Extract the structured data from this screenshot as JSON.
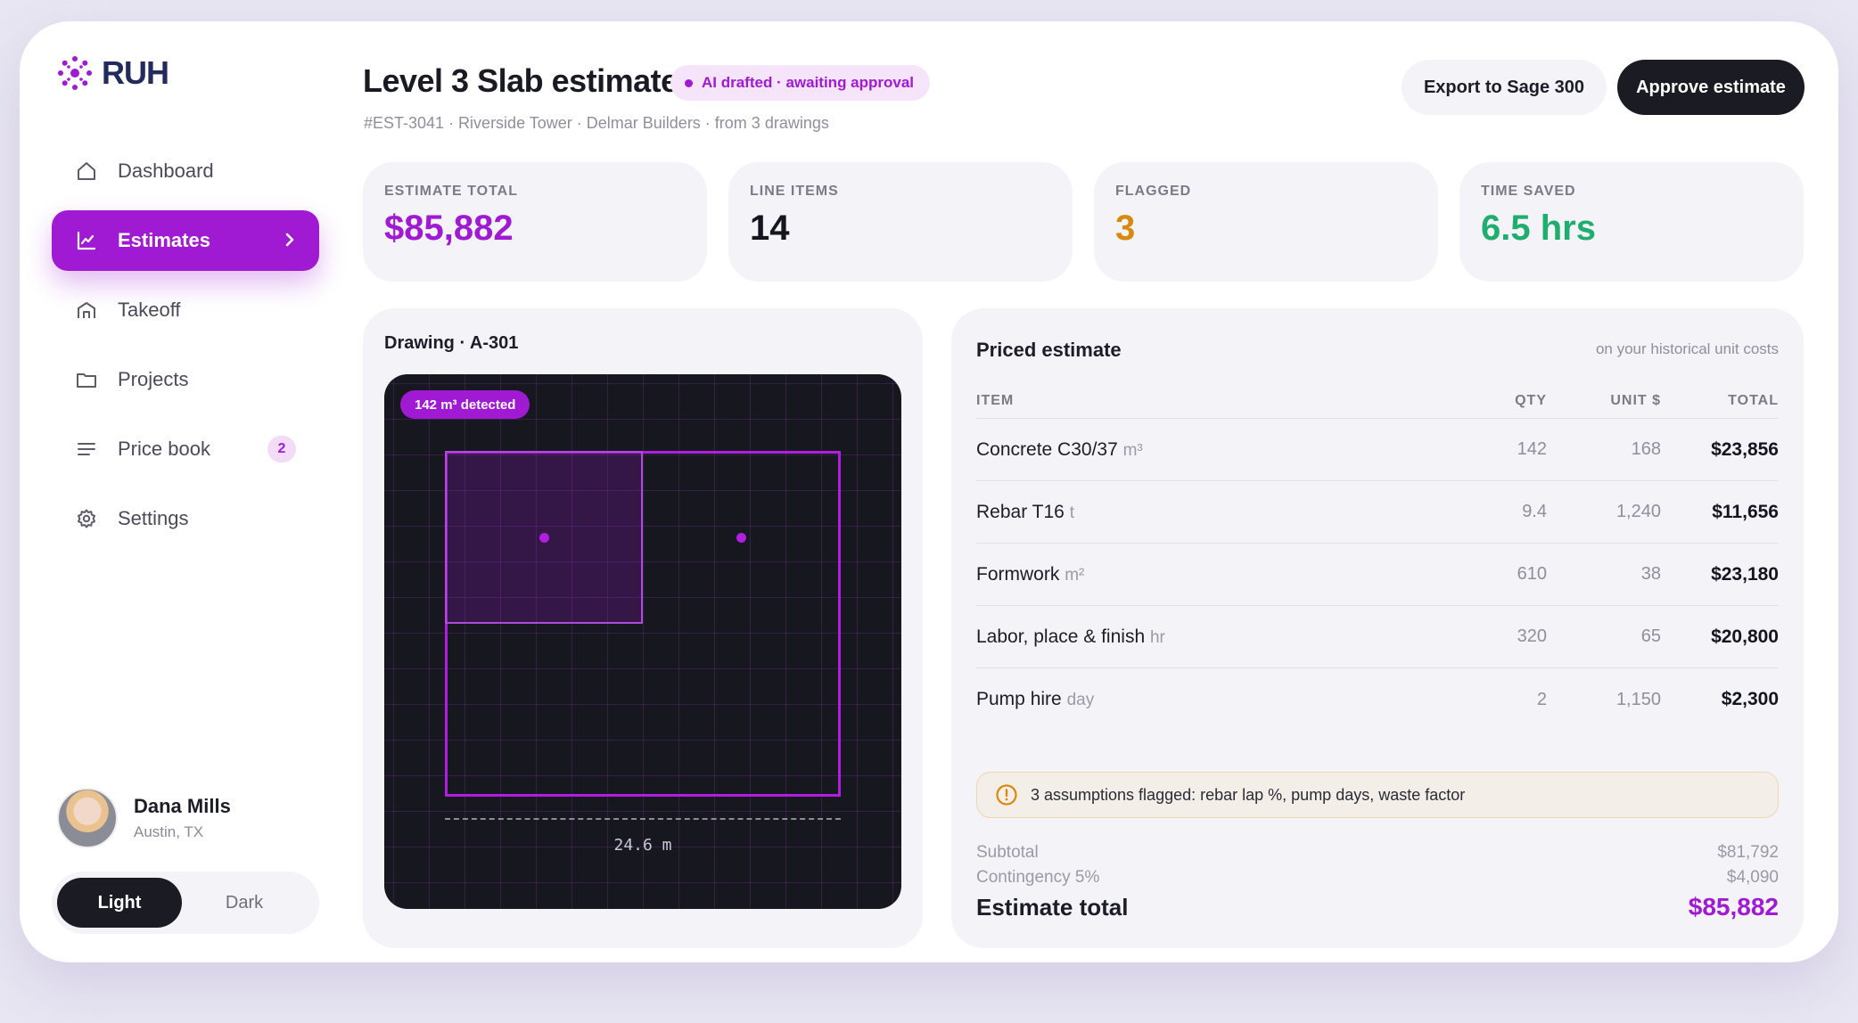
{
  "brand": {
    "name": "RUH",
    "accent": "#a11ad3",
    "logo_color": "#232a5c"
  },
  "sidebar": {
    "items": [
      {
        "label": "Dashboard",
        "icon": "home-icon"
      },
      {
        "label": "Estimates",
        "icon": "chart-icon",
        "active": true
      },
      {
        "label": "Takeoff",
        "icon": "building-icon"
      },
      {
        "label": "Projects",
        "icon": "folder-icon"
      },
      {
        "label": "Price book",
        "icon": "list-icon",
        "badge": "2"
      },
      {
        "label": "Settings",
        "icon": "gear-icon"
      }
    ]
  },
  "user": {
    "name": "Dana Mills",
    "location": "Austin, TX"
  },
  "theme": {
    "light": "Light",
    "dark": "Dark",
    "selected": "Light"
  },
  "header": {
    "title": "Level 3 Slab estimate",
    "status": "AI drafted · awaiting approval",
    "subtitle": "#EST-3041 · Riverside Tower · Delmar Builders · from 3 drawings",
    "export_label": "Export to Sage 300",
    "approve_label": "Approve estimate"
  },
  "stats": [
    {
      "label": "ESTIMATE TOTAL",
      "value": "$85,882",
      "color": "#a11ad3"
    },
    {
      "label": "LINE ITEMS",
      "value": "14",
      "color": "#15151f"
    },
    {
      "label": "FLAGGED",
      "value": "3",
      "color": "#d98a0c"
    },
    {
      "label": "TIME SAVED",
      "value": "6.5 hrs",
      "color": "#1fae6e"
    }
  ],
  "drawing": {
    "title": "Drawing · A-301",
    "detected": "142 m³ detected",
    "dimension": "24.6 m"
  },
  "estimate": {
    "title": "Priced estimate",
    "note": "on your historical unit costs",
    "columns": {
      "item": "ITEM",
      "qty": "QTY",
      "unit": "UNIT $",
      "total": "TOTAL"
    },
    "rows": [
      {
        "item": "Concrete C30/37",
        "unit_label": "m³",
        "qty": "142",
        "unit_price": "168",
        "total": "$23,856"
      },
      {
        "item": "Rebar T16",
        "unit_label": "t",
        "qty": "9.4",
        "unit_price": "1,240",
        "total": "$11,656"
      },
      {
        "item": "Formwork",
        "unit_label": "m²",
        "qty": "610",
        "unit_price": "38",
        "total": "$23,180"
      },
      {
        "item": "Labor, place & finish",
        "unit_label": "hr",
        "qty": "320",
        "unit_price": "65",
        "total": "$20,800"
      },
      {
        "item": "Pump hire",
        "unit_label": "day",
        "qty": "2",
        "unit_price": "1,150",
        "total": "$2,300"
      }
    ],
    "flag_text": "3 assumptions flagged: rebar lap %, pump days, waste factor",
    "subtotal_label": "Subtotal",
    "subtotal_value": "$81,792",
    "contingency_label": "Contingency 5%",
    "contingency_value": "$4,090",
    "total_label": "Estimate total",
    "total_value": "$85,882"
  }
}
